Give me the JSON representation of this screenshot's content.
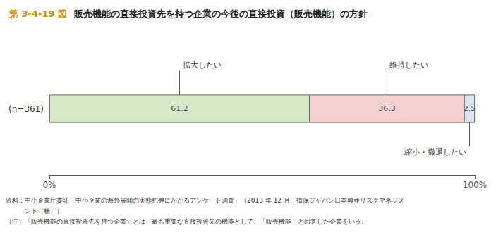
{
  "chart_data": {
    "type": "bar",
    "orientation": "horizontal",
    "stacked": true,
    "title": "第 3-4-19 図",
    "subtitle": "販売機能の直接投資先を持つ企業の今後の直接投資（販売機能）の方針",
    "categories": [
      "(n=361)"
    ],
    "series": [
      {
        "name": "拡大したい",
        "color": "#d6e8c8",
        "values": [
          61.2
        ]
      },
      {
        "name": "維持したい",
        "color": "#f5d0d0",
        "values": [
          36.3
        ]
      },
      {
        "name": "縮小・撤退したい",
        "color": "#dce6f1",
        "values": [
          2.5
        ]
      }
    ],
    "xlim": [
      0,
      100
    ],
    "xticks": [
      {
        "value": 0,
        "label": "0%"
      },
      {
        "value": 100,
        "label": "100%"
      }
    ],
    "data_labels": true,
    "grid": false,
    "annotations": [
      "資料：中小企業庁委託「中小企業の海外展開の実態把握にかかるアンケート調査」（2013 年 12 月、損保ジャパン日本興亜リスクマネジメ",
      "　　　ント（株））",
      "（注）「販売機能の直接投資先を持つ企業」とは、最も重要な直接投資先の機能として、「販売機能」と回答した企業をいう。"
    ]
  }
}
